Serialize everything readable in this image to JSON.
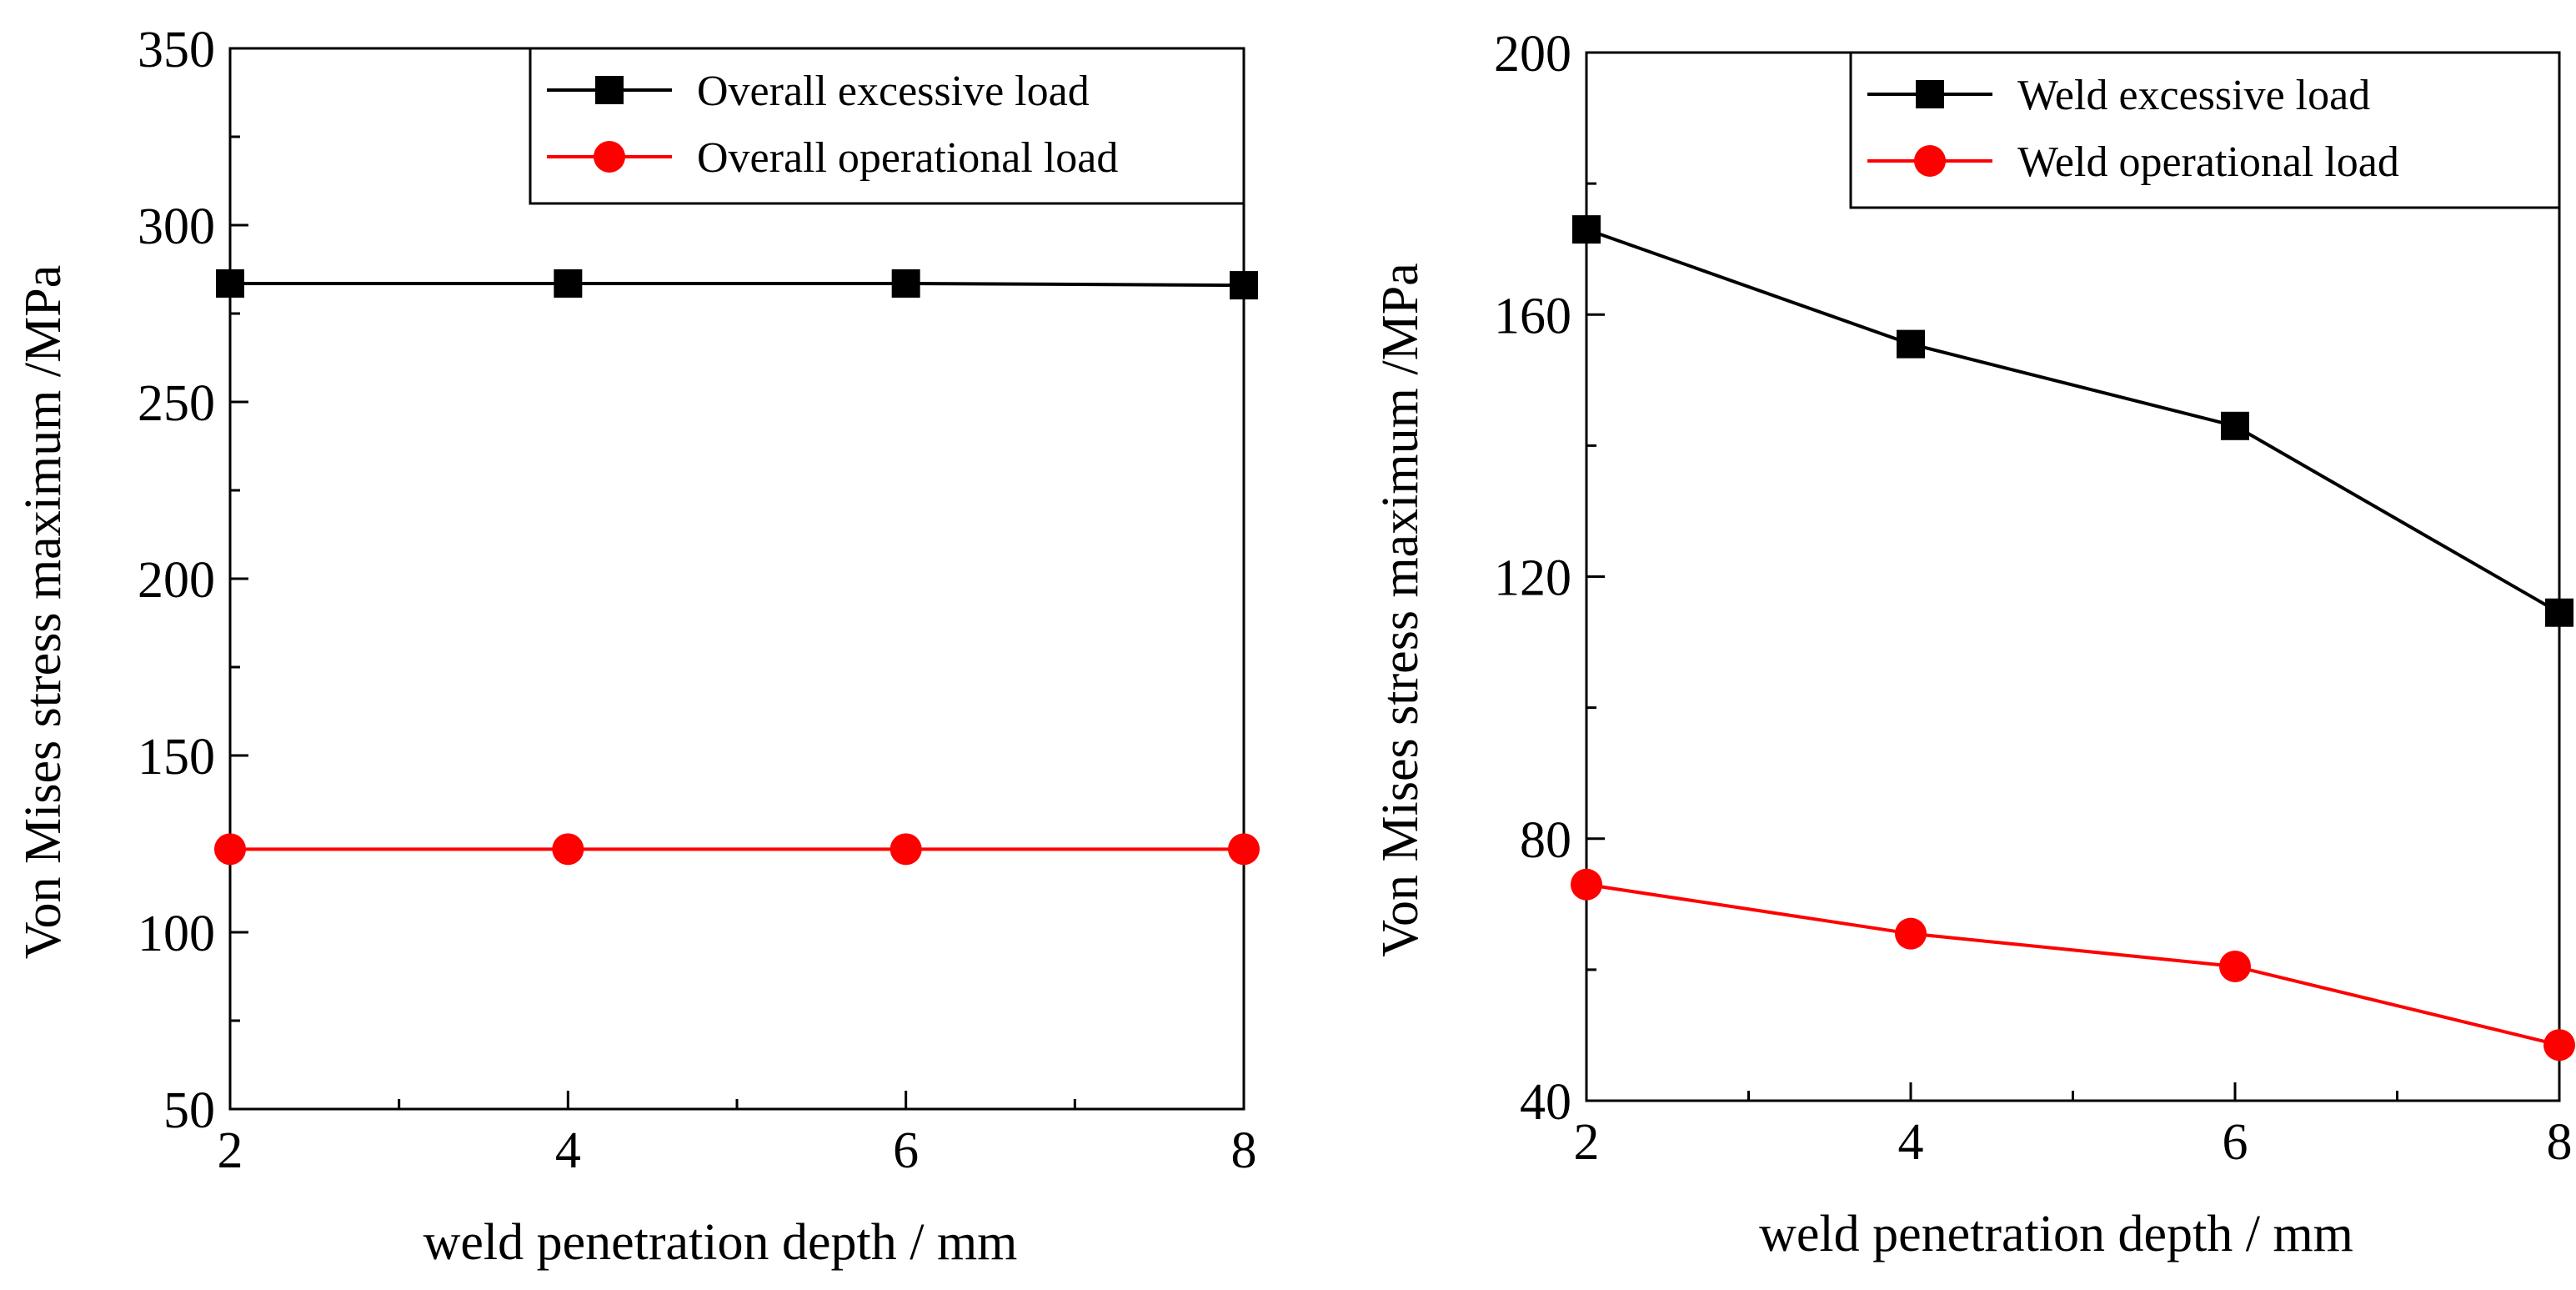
{
  "chart_data": [
    {
      "type": "line",
      "title": "",
      "xlabel": "weld penetration depth / mm",
      "ylabel": "Von Mises stress maximum /MPa",
      "xlim": [
        2,
        8
      ],
      "ylim": [
        50,
        350
      ],
      "xticks": [
        2,
        4,
        6,
        8
      ],
      "xminor": [
        3,
        5,
        7
      ],
      "yticks": [
        50,
        100,
        150,
        200,
        250,
        300,
        350
      ],
      "yminor": [
        75,
        125,
        175,
        225,
        275,
        325
      ],
      "legend_position": "top-right",
      "x": [
        2,
        4,
        6,
        8
      ],
      "series": [
        {
          "name": "Overall excessive load",
          "color": "#000000",
          "marker": "square",
          "values": [
            283.5,
            283.5,
            283.5,
            283
          ]
        },
        {
          "name": "Overall operational load",
          "color": "#ff0000",
          "marker": "circle",
          "values": [
            123.5,
            123.5,
            123.5,
            123.5
          ]
        }
      ]
    },
    {
      "type": "line",
      "title": "",
      "xlabel": "weld penetration depth / mm",
      "ylabel": "Von Mises stress maximum /MPa",
      "xlim": [
        2,
        8
      ],
      "ylim": [
        40,
        200
      ],
      "xticks": [
        2,
        4,
        6,
        8
      ],
      "xminor": [
        3,
        5,
        7
      ],
      "yticks": [
        40,
        80,
        120,
        160,
        200
      ],
      "yminor": [
        60,
        100,
        140,
        180
      ],
      "legend_position": "top-right",
      "x": [
        2,
        4,
        6,
        8
      ],
      "series": [
        {
          "name": "Weld excessive load",
          "color": "#000000",
          "marker": "square",
          "values": [
            173,
            155.5,
            143,
            114.5
          ]
        },
        {
          "name": "Weld operational load",
          "color": "#ff0000",
          "marker": "circle",
          "values": [
            73,
            65.5,
            60.5,
            48.5
          ]
        }
      ]
    }
  ]
}
